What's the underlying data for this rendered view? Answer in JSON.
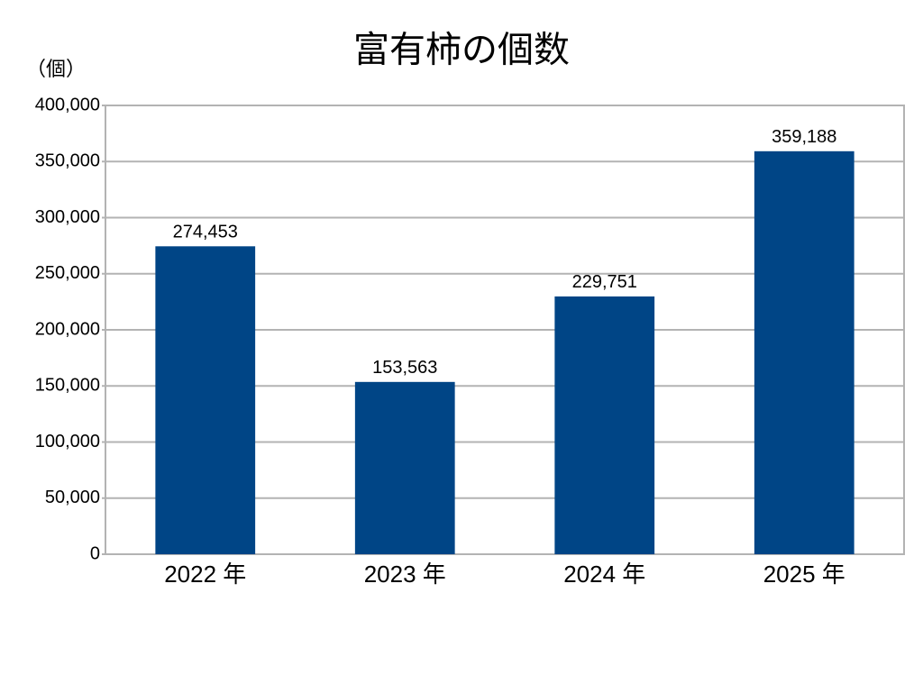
{
  "chart_data": {
    "type": "bar",
    "title": "富有柿の個数",
    "y_unit": "（個）",
    "categories": [
      "2022 年",
      "2023 年",
      "2024 年",
      "2025 年"
    ],
    "values": [
      274453,
      153563,
      229751,
      359188
    ],
    "value_labels": [
      "274,453",
      "153,563",
      "229,751",
      "359,188"
    ],
    "color": "#004586",
    "ylim": [
      0,
      400000
    ],
    "yticks": [
      0,
      {
        "value": 50000,
        "label": "50,000"
      },
      {
        "value": 100000,
        "label": "100,000"
      },
      {
        "value": 150000,
        "label": "150,000"
      },
      {
        "value": 200000,
        "label": "200,000"
      },
      {
        "value": 250000,
        "label": "250,000"
      },
      {
        "value": 300000,
        "label": "300,000"
      },
      {
        "value": 350000,
        "label": "350,000"
      },
      {
        "value": 400000,
        "label": "400,000"
      }
    ],
    "grid": true
  }
}
